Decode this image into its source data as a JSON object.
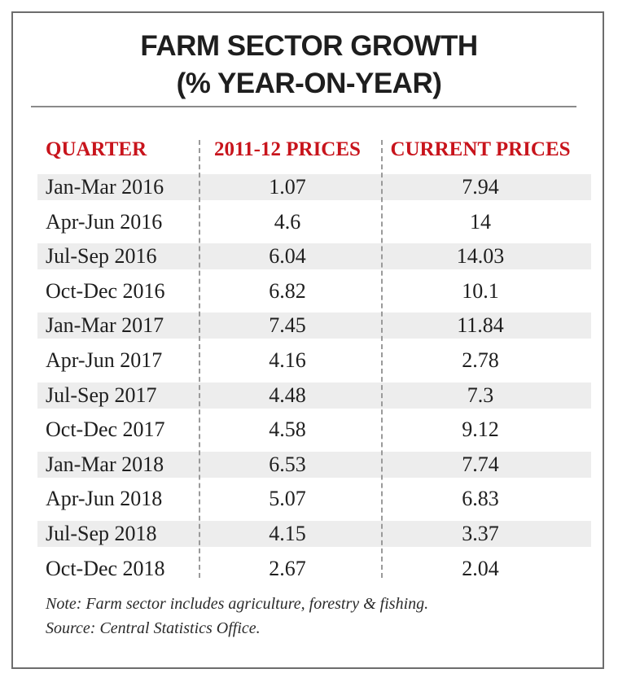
{
  "chart_data": {
    "type": "table",
    "title_line1": "FARM SECTOR GROWTH",
    "title_line2": "(% YEAR-ON-YEAR)",
    "columns": [
      "QUARTER",
      "2011-12 PRICES",
      "CURRENT PRICES"
    ],
    "rows": [
      {
        "quarter": "Jan-Mar 2016",
        "constant": "1.07",
        "current": "7.94"
      },
      {
        "quarter": "Apr-Jun 2016",
        "constant": "4.6",
        "current": "14"
      },
      {
        "quarter": "Jul-Sep 2016",
        "constant": "6.04",
        "current": "14.03"
      },
      {
        "quarter": "Oct-Dec 2016",
        "constant": "6.82",
        "current": "10.1"
      },
      {
        "quarter": "Jan-Mar 2017",
        "constant": "7.45",
        "current": "11.84"
      },
      {
        "quarter": "Apr-Jun 2017",
        "constant": "4.16",
        "current": "2.78"
      },
      {
        "quarter": "Jul-Sep 2017",
        "constant": "4.48",
        "current": "7.3"
      },
      {
        "quarter": "Oct-Dec 2017",
        "constant": "4.58",
        "current": "9.12"
      },
      {
        "quarter": "Jan-Mar 2018",
        "constant": "6.53",
        "current": "7.74"
      },
      {
        "quarter": "Apr-Jun 2018",
        "constant": "5.07",
        "current": "6.83"
      },
      {
        "quarter": "Jul-Sep 2018",
        "constant": "4.15",
        "current": "3.37"
      },
      {
        "quarter": "Oct-Dec 2018",
        "constant": "2.67",
        "current": "2.04"
      }
    ],
    "note": "Note: Farm sector includes agriculture, forestry & fishing.",
    "source": "Source: Central Statistics Office.",
    "colors": {
      "header_text": "#c8141c",
      "row_shade": "#ededed",
      "border": "#6d6d6d"
    }
  }
}
